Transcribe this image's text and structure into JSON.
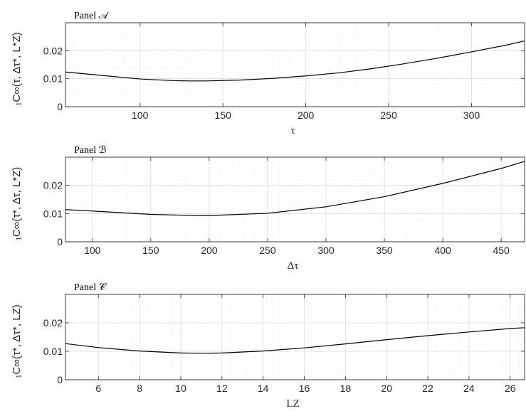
{
  "chart_data": [
    {
      "type": "line",
      "title": "Panel 𝒜",
      "xlabel": "τ",
      "ylabel": "₁C∞(τ, Δτ*, L*Z)",
      "xlim": [
        55,
        332
      ],
      "ylim": [
        0,
        0.03
      ],
      "xticks": [
        100,
        150,
        200,
        250,
        300
      ],
      "xtick_labels": [
        "100",
        "150",
        "200",
        "250",
        "300"
      ],
      "yticks": [
        0,
        0.01,
        0.02
      ],
      "ytick_labels": [
        "0",
        "0.01",
        "0.02"
      ],
      "grid": true,
      "minor_grid": true,
      "x": [
        55,
        80,
        100,
        120,
        130,
        140,
        160,
        180,
        200,
        220,
        240,
        260,
        280,
        300,
        320,
        332
      ],
      "y": [
        0.0124,
        0.011,
        0.0099,
        0.0093,
        0.0092,
        0.0092,
        0.0095,
        0.0101,
        0.011,
        0.0121,
        0.0136,
        0.0154,
        0.0174,
        0.0196,
        0.0219,
        0.0235
      ]
    },
    {
      "type": "line",
      "title": "Panel ℬ",
      "xlabel": "Δτ",
      "ylabel": "₁C∞(τ*, Δτ, L*Z)",
      "xlim": [
        77,
        470
      ],
      "ylim": [
        0,
        0.03
      ],
      "xticks": [
        100,
        150,
        200,
        250,
        300,
        350,
        400,
        450
      ],
      "xtick_labels": [
        "100",
        "150",
        "200",
        "250",
        "300",
        "350",
        "400",
        "450"
      ],
      "yticks": [
        0,
        0.01,
        0.02
      ],
      "ytick_labels": [
        "0",
        "0.01",
        "0.02"
      ],
      "grid": true,
      "minor_grid": true,
      "x": [
        77,
        100,
        150,
        190,
        200,
        250,
        300,
        350,
        400,
        450,
        470
      ],
      "y": [
        0.0114,
        0.0109,
        0.0097,
        0.0093,
        0.0093,
        0.0101,
        0.0124,
        0.016,
        0.0207,
        0.026,
        0.0285
      ]
    },
    {
      "type": "line",
      "title": "Panel 𝒞",
      "xlabel": "LZ",
      "ylabel": "₁C∞(τ*, Δτ*, LZ)",
      "xlim": [
        4.4,
        26.7
      ],
      "ylim": [
        0,
        0.03
      ],
      "xticks": [
        6,
        8,
        10,
        12,
        14,
        16,
        18,
        20,
        22,
        24,
        26
      ],
      "xtick_labels": [
        "6",
        "8",
        "10",
        "12",
        "14",
        "16",
        "18",
        "20",
        "22",
        "24",
        "26"
      ],
      "yticks": [
        0,
        0.01,
        0.02
      ],
      "ytick_labels": [
        "0",
        "0.01",
        "0.02"
      ],
      "grid": true,
      "minor_grid": true,
      "x": [
        4.4,
        6,
        8,
        10,
        11,
        12,
        14,
        16,
        18,
        20,
        22,
        24,
        26,
        26.7
      ],
      "y": [
        0.0127,
        0.0113,
        0.0101,
        0.0094,
        0.0093,
        0.0094,
        0.0101,
        0.0112,
        0.0126,
        0.0141,
        0.0155,
        0.0168,
        0.018,
        0.0183
      ]
    }
  ]
}
